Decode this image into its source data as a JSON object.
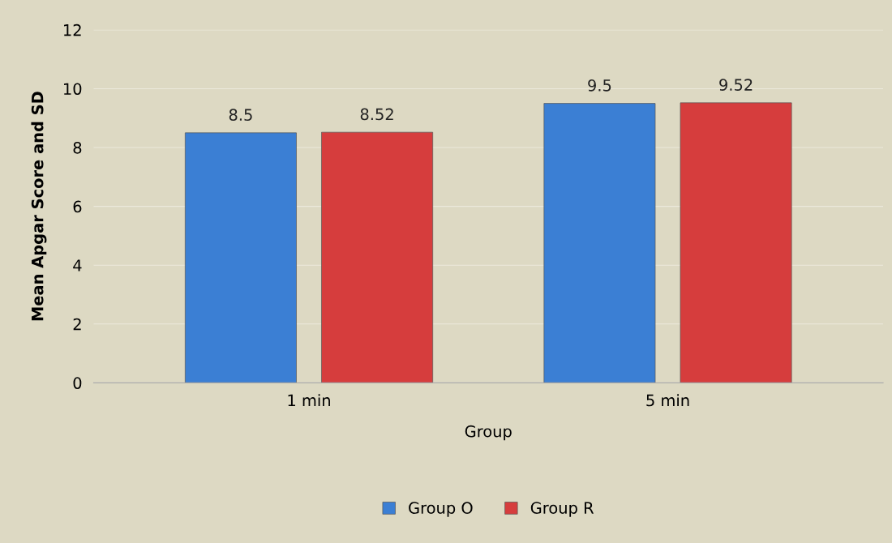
{
  "chart_data": {
    "type": "bar",
    "xlabel": "Group",
    "ylabel": "Mean Apgar Score and SD",
    "categories": [
      "1 min",
      "5 min"
    ],
    "series": [
      {
        "name": "Group O",
        "color": "#3b7fd4",
        "values": [
          8.5,
          9.5
        ]
      },
      {
        "name": "Group R",
        "color": "#d63d3d",
        "values": [
          8.52,
          9.52
        ]
      }
    ],
    "ylim": [
      0,
      12
    ],
    "yticks": [
      0,
      2,
      4,
      6,
      8,
      10,
      12
    ],
    "grid": "y",
    "legend": "bottom",
    "data_labels": true
  }
}
